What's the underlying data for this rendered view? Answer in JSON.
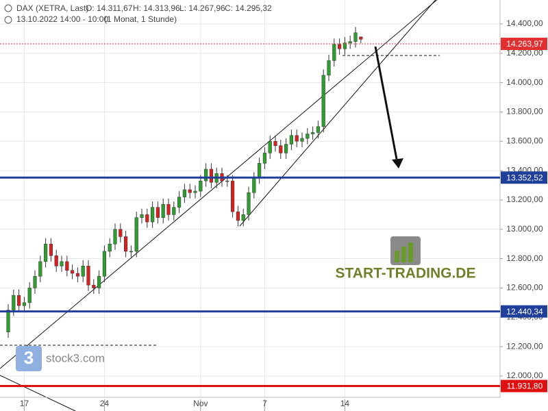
{
  "chart_data": {
    "type": "candlestick",
    "header": {
      "name": "DAX (XETRA, Last)",
      "ohlc": [
        "O: 14.311,67",
        "H: 14.313,96",
        "L: 14.267,96",
        "C: 14.295,32"
      ],
      "date": "13.10.2022 14:00 - 10:00",
      "interval": "(1 Monat, 1 Stunde)"
    },
    "watermarks": [
      "START-TRADING.DE",
      "stock3.com"
    ],
    "up_color": "#2e9e2e",
    "down_color": "#d92020",
    "open": [
      12300,
      12450,
      12550,
      12480,
      12500,
      12600,
      12680,
      12780,
      12900,
      12820,
      12750,
      12780,
      12720,
      12700,
      12680,
      12750,
      12620,
      12600,
      12680,
      12850,
      12900,
      13000,
      12950,
      12850,
      12850,
      13080,
      13100,
      13050,
      13150,
      13080,
      13170,
      13100,
      13150,
      13220,
      13270,
      13250,
      13260,
      13330,
      13410,
      13320,
      13380,
      13330,
      13330,
      13120,
      13060,
      13100,
      13250,
      13350,
      13450,
      13520,
      13600,
      13570,
      13520,
      13580,
      13640,
      13600,
      13620,
      13650,
      13660,
      13700,
      14050,
      14150,
      14260,
      14230,
      14270,
      14280,
      14311.67
    ],
    "high": [
      12490,
      12590,
      12590,
      12540,
      12640,
      12720,
      12820,
      12940,
      12940,
      12860,
      12820,
      12820,
      12760,
      12740,
      12790,
      12790,
      12660,
      12720,
      12890,
      12940,
      13040,
      13040,
      12990,
      12890,
      13120,
      13140,
      13140,
      13190,
      13190,
      13210,
      13210,
      13190,
      13260,
      13310,
      13310,
      13300,
      13370,
      13450,
      13450,
      13420,
      13420,
      13370,
      13370,
      13160,
      13140,
      13290,
      13390,
      13490,
      13560,
      13640,
      13640,
      13610,
      13620,
      13680,
      13680,
      13660,
      13690,
      13700,
      13740,
      14090,
      14190,
      14300,
      14300,
      14310,
      14320,
      14380,
      14313.96
    ],
    "low": [
      12260,
      12410,
      12440,
      12440,
      12460,
      12560,
      12640,
      12740,
      12780,
      12710,
      12710,
      12680,
      12660,
      12640,
      12640,
      12580,
      12560,
      12560,
      12640,
      12810,
      12860,
      12910,
      12810,
      12810,
      12810,
      13040,
      13010,
      13010,
      13040,
      13040,
      13060,
      13060,
      13110,
      13180,
      13210,
      13210,
      13220,
      13290,
      13280,
      13280,
      13290,
      13290,
      13080,
      13020,
      13020,
      13060,
      13210,
      13310,
      13410,
      13480,
      13530,
      13480,
      13480,
      13540,
      13560,
      13560,
      13580,
      13610,
      13620,
      13660,
      14010,
      14110,
      14190,
      14190,
      14230,
      14240,
      14267.96
    ],
    "close": [
      12450,
      12550,
      12480,
      12500,
      12600,
      12680,
      12780,
      12900,
      12820,
      12750,
      12780,
      12720,
      12700,
      12680,
      12750,
      12620,
      12600,
      12680,
      12850,
      12900,
      13000,
      12950,
      12850,
      12850,
      13080,
      13100,
      13050,
      13150,
      13080,
      13170,
      13100,
      13150,
      13220,
      13270,
      13250,
      13260,
      13330,
      13410,
      13320,
      13380,
      13330,
      13330,
      13120,
      13060,
      13100,
      13250,
      13350,
      13450,
      13520,
      13600,
      13570,
      13520,
      13580,
      13640,
      13600,
      13620,
      13650,
      13660,
      13700,
      14050,
      14150,
      14260,
      14230,
      14270,
      14280,
      14340,
      14295.32
    ],
    "xlim": [
      -1.54,
      92.05
    ],
    "xticks": [
      {
        "value": 3,
        "label": "17"
      },
      {
        "value": 18,
        "label": "24"
      },
      {
        "value": 36,
        "label": "Nov"
      },
      {
        "value": 48,
        "label": "7"
      },
      {
        "value": 63,
        "label": "14"
      }
    ],
    "ylim": [
      11855,
      14563
    ],
    "yticks": [
      {
        "value": 12000,
        "label": "12.000,00"
      },
      {
        "value": 12200,
        "label": "12.200,00"
      },
      {
        "value": 12400,
        "label": "12.400,00"
      },
      {
        "value": 12600,
        "label": "12.600,00"
      },
      {
        "value": 12800,
        "label": "12.800,00"
      },
      {
        "value": 13000,
        "label": "13.000,00"
      },
      {
        "value": 13200,
        "label": "13.200,00"
      },
      {
        "value": 13400,
        "label": "13.400,00"
      },
      {
        "value": 13600,
        "label": "13.600,00"
      },
      {
        "value": 13800,
        "label": "13.800,00"
      },
      {
        "value": 14000,
        "label": "14.000,00"
      },
      {
        "value": 14200,
        "label": "14.200,00"
      },
      {
        "value": 14400,
        "label": "14.400,00"
      }
    ],
    "grid": true,
    "levels": [
      {
        "value": 14263.97,
        "label": "14.263,97",
        "color": "#e03030",
        "style": "dotted"
      },
      {
        "value": 13352.52,
        "label": "13.352,52",
        "color": "#1f3f9a",
        "style": "solid"
      },
      {
        "value": 12440.34,
        "label": "12.440,34",
        "color": "#1f3f9a",
        "style": "solid"
      },
      {
        "value": 11931.8,
        "label": "11.931,80",
        "color": "#e01010",
        "style": "solid"
      }
    ]
  }
}
